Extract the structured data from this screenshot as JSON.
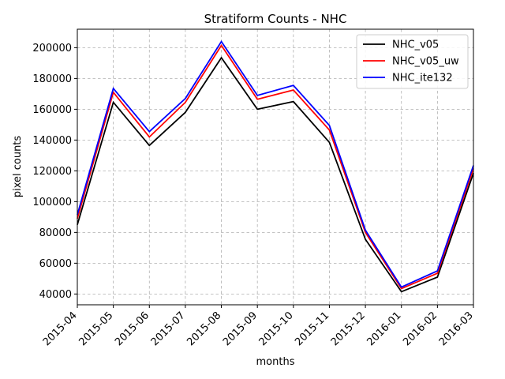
{
  "colors": {
    "background": "#ffffff",
    "grid": "#b0b0b0",
    "axis": "#000000"
  },
  "chart_data": {
    "type": "line",
    "title": "Stratiform Counts - NHC",
    "xlabel": "months",
    "ylabel": "pixel counts",
    "x": [
      "2015-04",
      "2015-05",
      "2015-06",
      "2015-07",
      "2015-08",
      "2015-09",
      "2015-10",
      "2015-11",
      "2015-12",
      "2016-01",
      "2016-02",
      "2016-03"
    ],
    "y_ticks": [
      40000,
      60000,
      80000,
      100000,
      120000,
      140000,
      160000,
      180000,
      200000
    ],
    "y_tick_labels": [
      "40000",
      "60000",
      "80000",
      "100000",
      "120000",
      "140000",
      "160000",
      "180000",
      "200000"
    ],
    "ylim": [
      33000,
      212000
    ],
    "grid": true,
    "grid_style": "dashed",
    "legend_position": "upper-right",
    "series": [
      {
        "name": "NHC_v05",
        "color": "#000000",
        "values": [
          85000,
          164500,
          136500,
          158000,
          193500,
          160000,
          165000,
          138500,
          75500,
          41500,
          51000,
          118500
        ]
      },
      {
        "name": "NHC_v05_uw",
        "color": "#ff0000",
        "values": [
          89000,
          171000,
          142000,
          164500,
          201500,
          166500,
          172500,
          146500,
          80000,
          43500,
          53500,
          121500
        ]
      },
      {
        "name": "NHC_ite132",
        "color": "#0000ff",
        "values": [
          91500,
          173500,
          145500,
          167000,
          204000,
          169000,
          175500,
          149500,
          81500,
          44500,
          55000,
          123500
        ]
      }
    ]
  }
}
